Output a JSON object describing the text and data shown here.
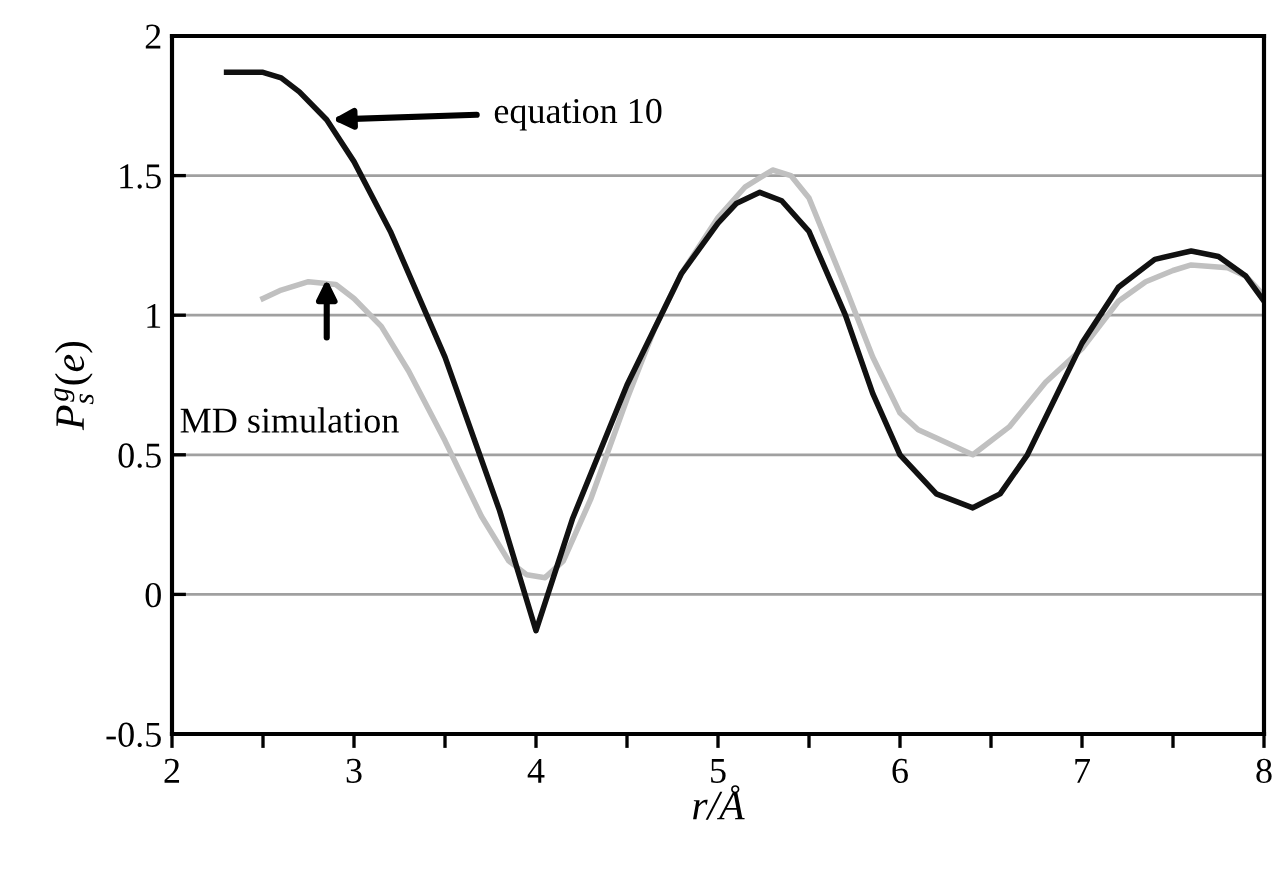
{
  "chart_data": {
    "type": "line",
    "xlabel": "r/Å",
    "ylabel": "P$^{g}$$_{s}$(e)",
    "xlim": [
      2,
      8
    ],
    "ylim": [
      -0.5,
      2
    ],
    "xticks": [
      2,
      {
        "value": 2.5,
        "label": null
      },
      3,
      {
        "value": 3.5,
        "label": null
      },
      4,
      {
        "value": 4.5,
        "label": null
      },
      5,
      {
        "value": 5.5,
        "label": null
      },
      6,
      {
        "value": 6.5,
        "label": null
      },
      7,
      {
        "value": 7.5,
        "label": null
      },
      8
    ],
    "yticks": [
      {
        "value": -0.5,
        "label": "-0.5"
      },
      0,
      0.5,
      1,
      1.5,
      2
    ],
    "grid": "y",
    "line_style": "solid",
    "series": [
      {
        "color": "#c0c0c0",
        "x": [
          2.5,
          2.6,
          2.75,
          2.9,
          3.0,
          3.15,
          3.3,
          3.5,
          3.7,
          3.85,
          3.95,
          4.05,
          4.15,
          4.3,
          4.5,
          4.65,
          4.8,
          5.0,
          5.15,
          5.3,
          5.4,
          5.5,
          5.7,
          5.85,
          6.0,
          6.1,
          6.2,
          6.4,
          6.6,
          6.8,
          7.0,
          7.2,
          7.35,
          7.5,
          7.6,
          7.8,
          7.9,
          8.0
        ],
        "values": [
          1.06,
          1.09,
          1.12,
          1.11,
          1.06,
          0.96,
          0.8,
          0.55,
          0.28,
          0.12,
          0.07,
          0.06,
          0.12,
          0.34,
          0.7,
          0.95,
          1.15,
          1.35,
          1.46,
          1.52,
          1.5,
          1.42,
          1.1,
          0.85,
          0.65,
          0.59,
          0.56,
          0.5,
          0.6,
          0.76,
          0.88,
          1.05,
          1.12,
          1.16,
          1.18,
          1.17,
          1.14,
          1.07
        ]
      },
      {
        "color": "#111111",
        "x": [
          2.3,
          2.5,
          2.6,
          2.7,
          2.85,
          3.0,
          3.2,
          3.5,
          3.8,
          4.0,
          4.2,
          4.5,
          4.8,
          5.0,
          5.1,
          5.23,
          5.35,
          5.5,
          5.7,
          5.85,
          6.0,
          6.2,
          6.4,
          6.55,
          6.7,
          6.85,
          7.0,
          7.2,
          7.4,
          7.6,
          7.75,
          7.9,
          8.0
        ],
        "values": [
          1.87,
          1.87,
          1.85,
          1.8,
          1.7,
          1.55,
          1.3,
          0.85,
          0.3,
          -0.13,
          0.27,
          0.75,
          1.15,
          1.33,
          1.4,
          1.44,
          1.41,
          1.3,
          1.0,
          0.72,
          0.5,
          0.36,
          0.31,
          0.36,
          0.5,
          0.7,
          0.9,
          1.1,
          1.2,
          1.23,
          1.21,
          1.14,
          1.05
        ]
      }
    ],
    "annotations": [
      {
        "text": "equation 10",
        "x": 2.85,
        "y": 1.7
      },
      "MD simulation"
    ]
  }
}
